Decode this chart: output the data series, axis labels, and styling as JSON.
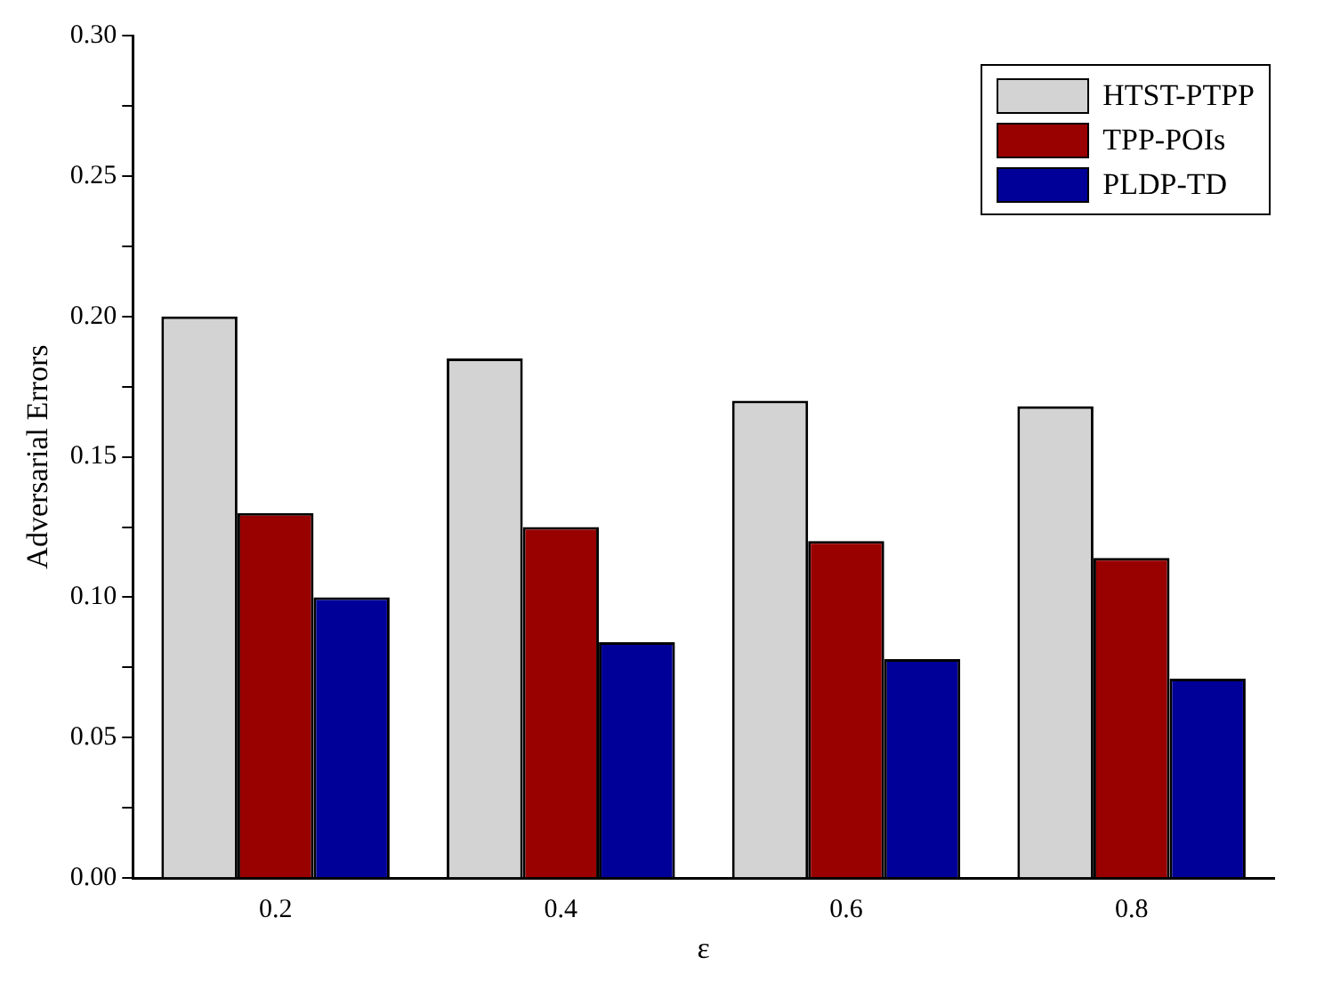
{
  "chart_data": {
    "type": "bar",
    "xlabel": "ε",
    "ylabel": "Adversarial Errors",
    "categories": [
      "0.2",
      "0.4",
      "0.6",
      "0.8"
    ],
    "series": [
      {
        "name": "HTST-PTPP",
        "color": "#d3d3d3",
        "values": [
          0.2,
          0.185,
          0.17,
          0.168
        ]
      },
      {
        "name": "TPP-POIs",
        "color": "#990000",
        "values": [
          0.13,
          0.125,
          0.12,
          0.114
        ]
      },
      {
        "name": "PLDP-TD",
        "color": "#000099",
        "values": [
          0.1,
          0.084,
          0.078,
          0.071
        ]
      }
    ],
    "ylim": [
      0,
      0.3
    ],
    "yticks": [
      {
        "value": 0,
        "label": "0.00"
      },
      {
        "value": 0.025,
        "label": null
      },
      {
        "value": 0.05,
        "label": "0.05"
      },
      {
        "value": 0.075,
        "label": null
      },
      {
        "value": 0.1,
        "label": "0.10"
      },
      {
        "value": 0.125,
        "label": null
      },
      {
        "value": 0.15,
        "label": "0.15"
      },
      {
        "value": 0.175,
        "label": null
      },
      {
        "value": 0.2,
        "label": "0.20"
      },
      {
        "value": 0.225,
        "label": null
      },
      {
        "value": 0.25,
        "label": "0.25"
      },
      {
        "value": 0.275,
        "label": null
      },
      {
        "value": 0.3,
        "label": "0.30"
      }
    ],
    "grid": false,
    "legend": "top right"
  }
}
